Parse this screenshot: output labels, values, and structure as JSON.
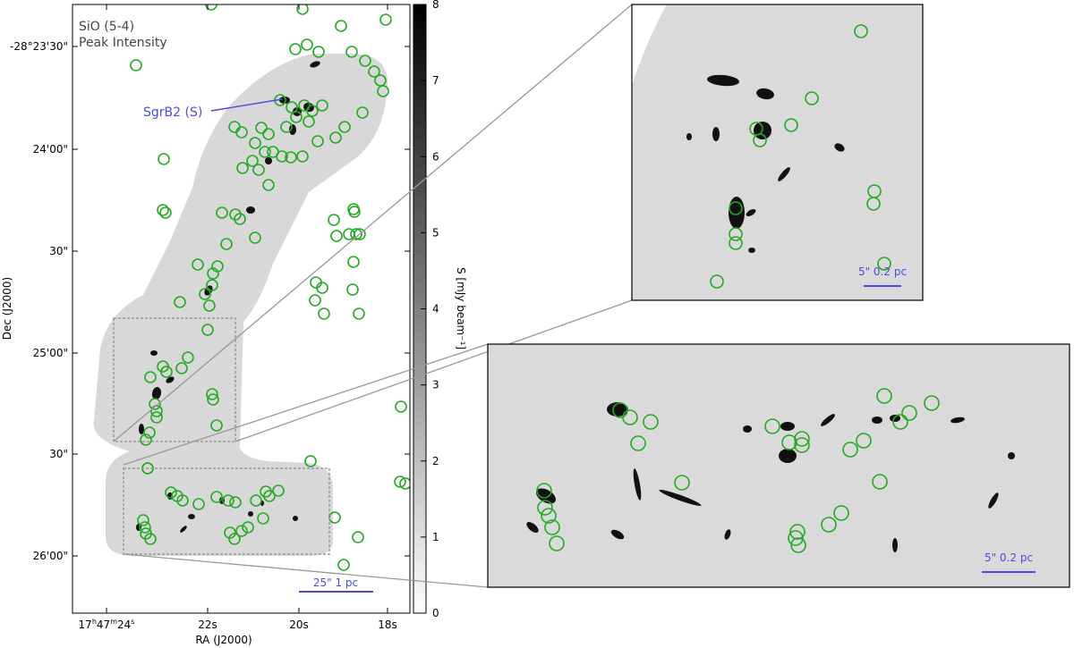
{
  "main_panel": {
    "line_title": "SiO (5-4)",
    "line_subtitle": "Peak Intensity",
    "source_label": "SgrB2 (S)",
    "x_axis_label": "RA (J2000)",
    "y_axis_label": "Dec (J2000)",
    "x_ticks": [
      {
        "label_main": "17",
        "label_parts": [
          "h",
          "47",
          "m",
          "24",
          "s"
        ],
        "ra_s": 24
      },
      {
        "label": "22s",
        "ra_s": 22
      },
      {
        "label": "20s",
        "ra_s": 20
      },
      {
        "label": "18s",
        "ra_s": 18
      }
    ],
    "y_ticks": [
      {
        "label": "-28°23'30\"",
        "dec_offset_arcsec": 0
      },
      {
        "label": "24'00\"",
        "dec_offset_arcsec": 30
      },
      {
        "label": "30\"",
        "dec_offset_arcsec": 60
      },
      {
        "label": "25'00\"",
        "dec_offset_arcsec": 90
      },
      {
        "label": "30\"",
        "dec_offset_arcsec": 120
      },
      {
        "label": "26'00\"",
        "dec_offset_arcsec": 150
      }
    ],
    "scale_bar_label": "25\" 1 pc"
  },
  "colorbar": {
    "label": "S [mJy beam⁻¹]",
    "ticks": [
      "0",
      "1",
      "2",
      "3",
      "4",
      "5",
      "6",
      "7",
      "8"
    ],
    "min": 0,
    "max": 8
  },
  "inset_upper": {
    "scale_bar_label": "5\" 0.2 pc"
  },
  "inset_lower": {
    "scale_bar_label": "5\" 0.2 pc"
  },
  "colors": {
    "source_marker": "#22aa22",
    "annotation_blue": "#4b4bdc",
    "map_background": "#d9d9d9",
    "zoom_box": "#999999"
  }
}
